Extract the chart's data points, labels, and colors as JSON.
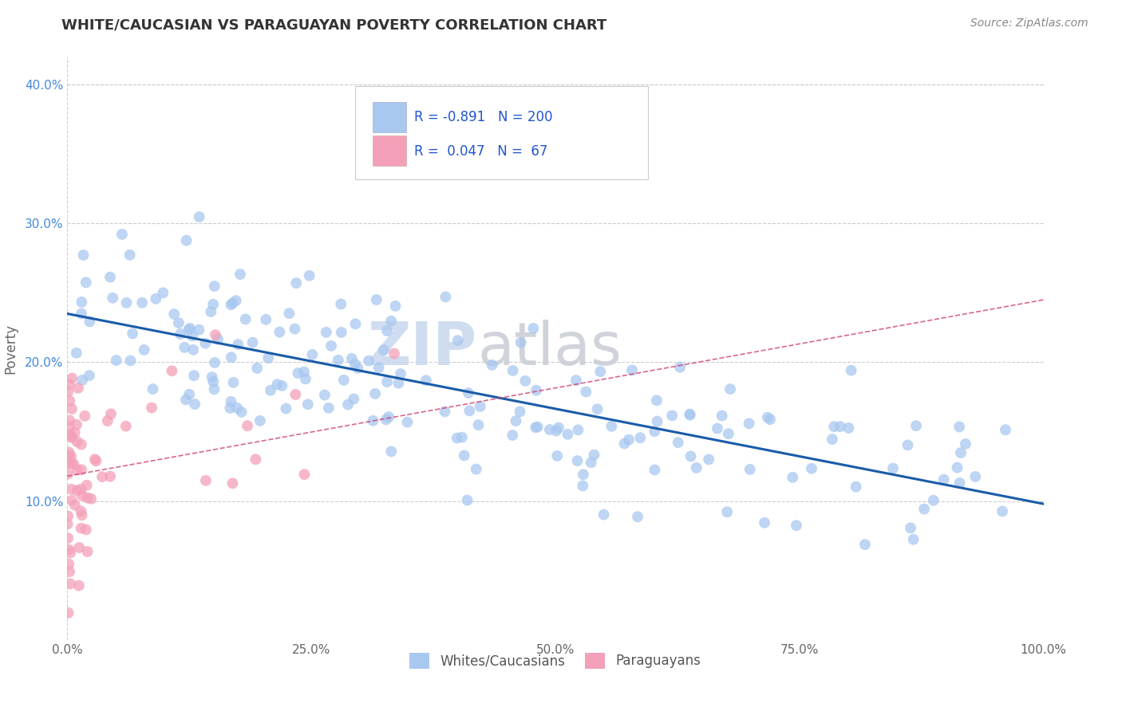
{
  "title": "WHITE/CAUCASIAN VS PARAGUAYAN POVERTY CORRELATION CHART",
  "source": "Source: ZipAtlas.com",
  "ylabel": "Poverty",
  "xlim": [
    0,
    1.0
  ],
  "ylim": [
    0,
    0.42
  ],
  "xticks": [
    0.0,
    0.25,
    0.5,
    0.75,
    1.0
  ],
  "xtick_labels": [
    "0.0%",
    "25.0%",
    "50.0%",
    "75.0%",
    "100.0%"
  ],
  "yticks": [
    0.1,
    0.2,
    0.3,
    0.4
  ],
  "ytick_labels": [
    "10.0%",
    "20.0%",
    "30.0%",
    "40.0%"
  ],
  "blue_color": "#a8c8f0",
  "pink_color": "#f4a0b8",
  "blue_line_color": "#1a5ca8",
  "pink_line_color": "#d04070",
  "R_blue": -0.891,
  "N_blue": 200,
  "R_pink": 0.047,
  "N_pink": 67,
  "blue_line_x": [
    0.0,
    1.0
  ],
  "blue_line_y": [
    0.235,
    0.098
  ],
  "pink_line_x": [
    0.0,
    1.0
  ],
  "pink_line_y": [
    0.118,
    0.245
  ],
  "watermark_zip": "ZIP",
  "watermark_atlas": "atlas",
  "background_color": "#ffffff",
  "grid_color": "#cccccc"
}
